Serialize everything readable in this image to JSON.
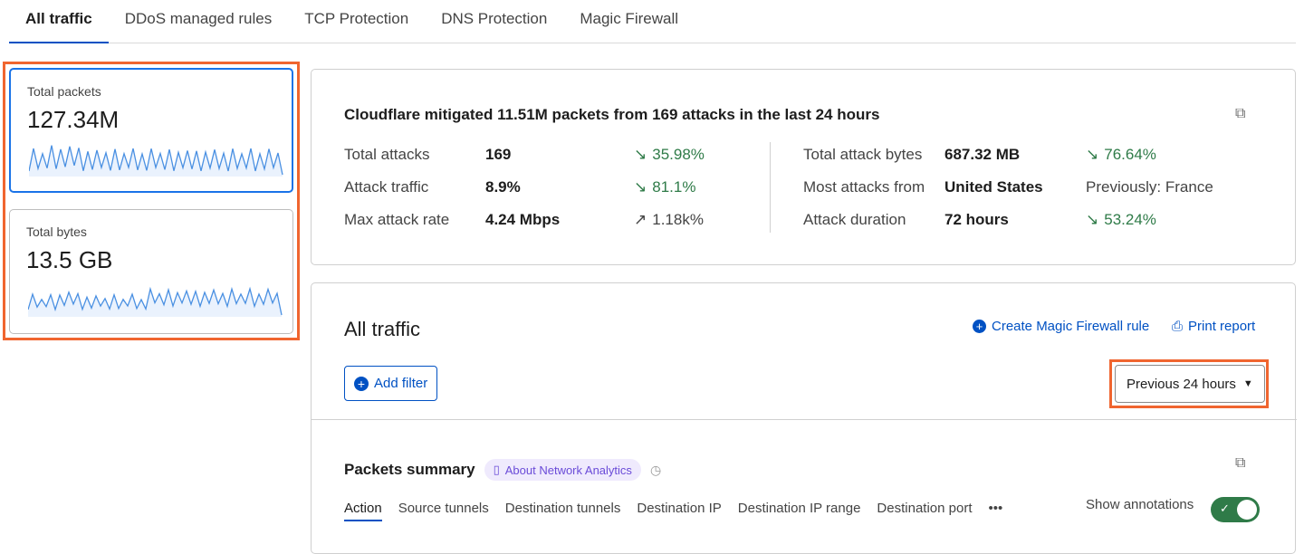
{
  "tabs": [
    {
      "label": "All traffic",
      "active": true
    },
    {
      "label": "DDoS managed rules"
    },
    {
      "label": "TCP Protection"
    },
    {
      "label": "DNS Protection"
    },
    {
      "label": "Magic Firewall"
    }
  ],
  "cards": [
    {
      "label": "Total packets",
      "value": "127.34M",
      "selected": true
    },
    {
      "label": "Total bytes",
      "value": "13.5 GB"
    }
  ],
  "summary": {
    "headline": "Cloudflare mitigated 11.51M packets from 169 attacks in the last 24 hours",
    "left": [
      {
        "label": "Total attacks",
        "value": "169",
        "change": "35.98%",
        "direction": "down"
      },
      {
        "label": "Attack traffic",
        "value": "8.9%",
        "change": "81.1%",
        "direction": "down"
      },
      {
        "label": "Max attack rate",
        "value": "4.24 Mbps",
        "change": "1.18k%",
        "direction": "up"
      }
    ],
    "right": [
      {
        "label": "Total attack bytes",
        "value": "687.32 MB",
        "change": "76.64%",
        "direction": "down"
      },
      {
        "label": "Most attacks from",
        "value": "United States",
        "change": "Previously: France",
        "direction": "none"
      },
      {
        "label": "Attack duration",
        "value": "72 hours",
        "change": "53.24%",
        "direction": "down"
      }
    ]
  },
  "traffic": {
    "title": "All traffic",
    "create_rule": "Create Magic Firewall rule",
    "print_report": "Print report",
    "add_filter": "Add filter",
    "time_range": "Previous 24 hours",
    "packets_summary": "Packets summary",
    "about": "About Network Analytics",
    "subtabs": [
      "Action",
      "Source tunnels",
      "Destination tunnels",
      "Destination IP",
      "Destination IP range",
      "Destination port"
    ],
    "more": "•••",
    "show_annotations": "Show annotations",
    "annotations_on": true
  },
  "colors": {
    "accent": "#0051c3",
    "highlight": "#f0652f",
    "positive": "#2f7b48",
    "sparkline": "#4a90e2"
  }
}
